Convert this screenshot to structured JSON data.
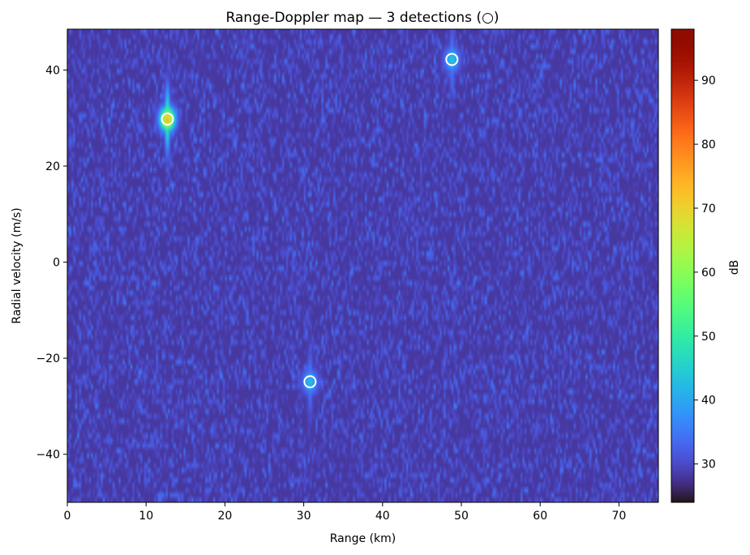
{
  "chart_data": {
    "type": "heatmap",
    "title": "Range-Doppler map   — 3 detections (○)",
    "xlabel": "Range (km)",
    "ylabel": "Radial velocity (m/s)",
    "xlim": [
      0,
      75
    ],
    "ylim": [
      -50,
      48.5
    ],
    "x_ticks": [
      0,
      10,
      20,
      30,
      40,
      50,
      60,
      70
    ],
    "y_ticks": [
      -40,
      -20,
      0,
      20,
      40
    ],
    "colorbar": {
      "label": "dB",
      "range": [
        24,
        98
      ],
      "ticks": [
        30,
        40,
        50,
        60,
        70,
        80,
        90
      ],
      "colormap": "turbo"
    },
    "noise_floor_db": 28,
    "detections": [
      {
        "range_km": 12.7,
        "velocity_mps": 29.8,
        "peak_db": 75
      },
      {
        "range_km": 48.8,
        "velocity_mps": 42.2,
        "peak_db": 44
      },
      {
        "range_km": 30.8,
        "velocity_mps": -24.9,
        "peak_db": 43
      }
    ],
    "marker_color": "#ffffff"
  }
}
